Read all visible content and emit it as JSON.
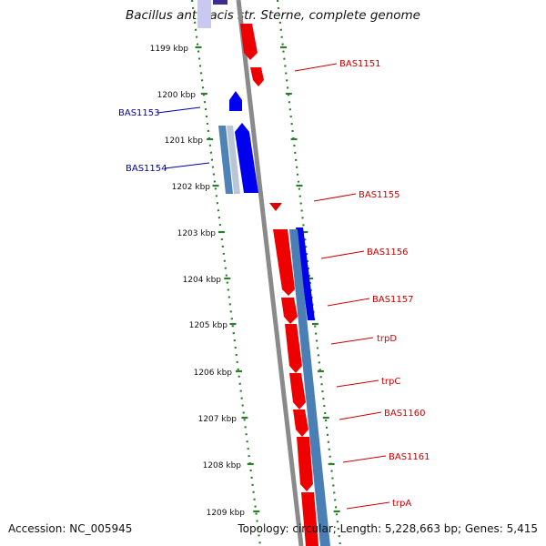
{
  "title": "Bacillus anthracis str. Sterne, complete genome",
  "accession": "Accession: NC_005945",
  "topology": "Topology: circular; Length: 5,228,663 bp; Genes: 5,415",
  "colors": {
    "forward_gene": "#ff0000",
    "reverse_gene": "#0000ff",
    "reverse_gene_light": "#4a80b8",
    "backbone": "#808080",
    "tick": "#2e7d2e",
    "label_forward": "#cc0000",
    "label_reverse": "#0000aa"
  },
  "scale_labels": [
    "1199 kbp",
    "1200 kbp",
    "1201 kbp",
    "1202 kbp",
    "1203 kbp",
    "1204 kbp",
    "1205 kbp",
    "1206 kbp",
    "1207 kbp",
    "1208 kbp",
    "1209 kbp"
  ],
  "forward_gene_labels": [
    "BAS1151",
    "BAS1155",
    "BAS1156",
    "BAS1157",
    "trpD",
    "trpC",
    "BAS1160",
    "BAS1161",
    "trpA"
  ],
  "reverse_gene_labels": [
    "BAS1153",
    "BAS1154"
  ]
}
